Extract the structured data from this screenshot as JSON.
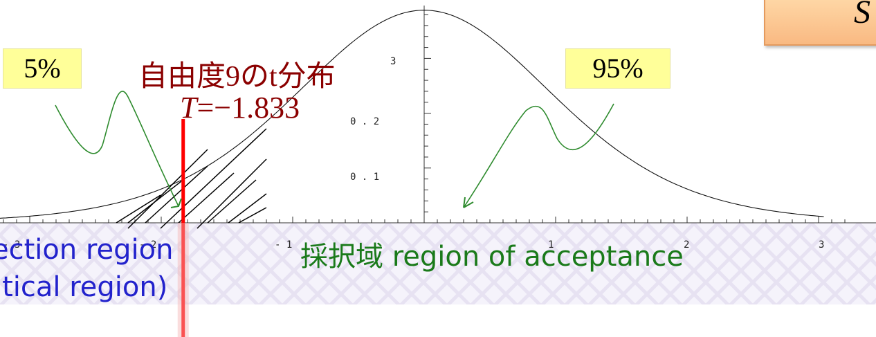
{
  "chart_data": {
    "type": "line",
    "distribution": "t distribution, 9 degrees of freedom",
    "title": "自由度9のt分布",
    "critical_value_label": "T=−1.833",
    "critical_value": -1.833,
    "x_ticks": [
      "- 3",
      "- 2",
      "- 1",
      "1",
      "2",
      "3"
    ],
    "y_ticks": [
      "0 . 1",
      "0 . 2",
      "3"
    ],
    "xlim": [
      -3,
      3
    ],
    "ylim": [
      0,
      0.39
    ],
    "shaded_region": "x < -1.833"
  },
  "callouts": {
    "left_pct": "5%",
    "right_pct": "95%"
  },
  "corner_box": {
    "text": "S"
  },
  "rejection": {
    "line1": "ection region",
    "line2": "itical region)"
  },
  "acceptance": {
    "text": "採択域 region of acceptance"
  },
  "colors": {
    "critical_line": "#ff0000",
    "arrow": "#2e8b2e",
    "title": "#8b0000",
    "rejection_text": "#2222cc",
    "acceptance_text": "#1a7a1a"
  }
}
